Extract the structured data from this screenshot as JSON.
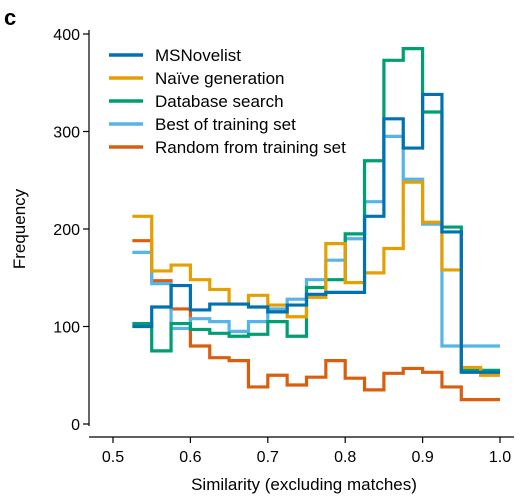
{
  "panel_label": "c",
  "chart_data": {
    "type": "step",
    "xlabel": "Similarity (excluding matches)",
    "ylabel": "Frequency",
    "xlim": [
      0.5,
      1.0
    ],
    "ylim": [
      0,
      400
    ],
    "x_ticks": [
      0.5,
      0.6,
      0.7,
      0.8,
      0.9,
      1.0
    ],
    "x_tick_labels": [
      "0.5",
      "0.6",
      "0.7",
      "0.8",
      "0.9",
      "1.0"
    ],
    "y_ticks": [
      0,
      100,
      200,
      300,
      400
    ],
    "y_tick_labels": [
      "0",
      "100",
      "200",
      "300",
      "400"
    ],
    "bin_edges": [
      0.525,
      0.55,
      0.575,
      0.6,
      0.625,
      0.65,
      0.675,
      0.7,
      0.725,
      0.75,
      0.775,
      0.8,
      0.825,
      0.85,
      0.875,
      0.9,
      0.925,
      0.95,
      0.975,
      1.0
    ],
    "legend_position": "top-left",
    "series": [
      {
        "name": "Random from training set",
        "color": "#d95f0e",
        "values": [
          188,
          147,
          118,
          80,
          68,
          65,
          38,
          50,
          40,
          48,
          65,
          47,
          35,
          52,
          57,
          53,
          38,
          25,
          25
        ]
      },
      {
        "name": "Best of training set",
        "color": "#56b4e9",
        "values": [
          176,
          144,
          98,
          108,
          105,
          95,
          105,
          118,
          128,
          148,
          168,
          190,
          228,
          295,
          251,
          205,
          80,
          80,
          80
        ]
      },
      {
        "name": "Database search",
        "color": "#009e73",
        "values": [
          103,
          75,
          103,
          97,
          93,
          90,
          92,
          105,
          90,
          140,
          148,
          195,
          270,
          373,
          385,
          320,
          202,
          55,
          55
        ]
      },
      {
        "name": "Naïve generation",
        "color": "#e69f00",
        "values": [
          213,
          157,
          163,
          148,
          138,
          123,
          132,
          122,
          110,
          130,
          185,
          145,
          155,
          180,
          248,
          207,
          158,
          58,
          50
        ]
      },
      {
        "name": "MSNovelist",
        "color": "#0072b2",
        "values": [
          100,
          120,
          142,
          117,
          123,
          123,
          120,
          115,
          122,
          133,
          135,
          135,
          213,
          313,
          283,
          338,
          197,
          53,
          53
        ]
      }
    ],
    "legend_order": [
      "MSNovelist",
      "Naïve generation",
      "Database search",
      "Best of training set",
      "Random from training set"
    ]
  }
}
